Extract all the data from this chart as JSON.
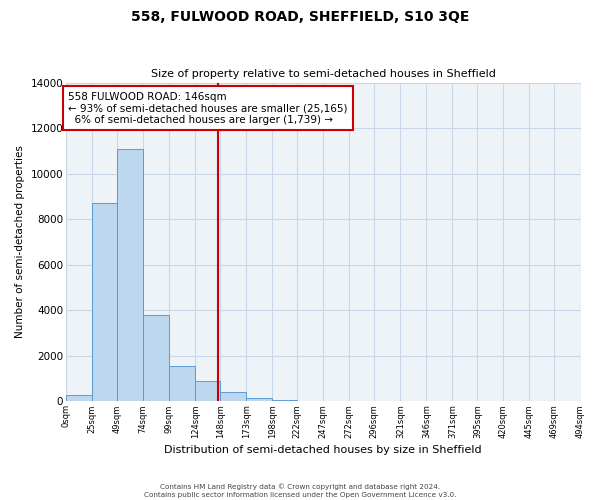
{
  "title": "558, FULWOOD ROAD, SHEFFIELD, S10 3QE",
  "subtitle": "Size of property relative to semi-detached houses in Sheffield",
  "xlabel": "Distribution of semi-detached houses by size in Sheffield",
  "ylabel": "Number of semi-detached properties",
  "footer_line1": "Contains HM Land Registry data © Crown copyright and database right 2024.",
  "footer_line2": "Contains public sector information licensed under the Open Government Licence v3.0.",
  "annotation_line1": "558 FULWOOD ROAD: 146sqm",
  "annotation_line2": "← 93% of semi-detached houses are smaller (25,165)",
  "annotation_line3": "6% of semi-detached houses are larger (1,739) →",
  "property_line_x": 146,
  "bar_edges": [
    0,
    25,
    49,
    74,
    99,
    124,
    148,
    173,
    198,
    222,
    247,
    272,
    296,
    321,
    346,
    371,
    395,
    420,
    445,
    469,
    494
  ],
  "bar_heights": [
    300,
    8700,
    11100,
    3800,
    1550,
    900,
    400,
    150,
    50,
    0,
    0,
    0,
    0,
    0,
    0,
    0,
    0,
    0,
    0,
    0
  ],
  "tick_labels": [
    "0sqm",
    "25sqm",
    "49sqm",
    "74sqm",
    "99sqm",
    "124sqm",
    "148sqm",
    "173sqm",
    "198sqm",
    "222sqm",
    "247sqm",
    "272sqm",
    "296sqm",
    "321sqm",
    "346sqm",
    "371sqm",
    "395sqm",
    "420sqm",
    "445sqm",
    "469sqm",
    "494sqm"
  ],
  "bar_color": "#bdd7ee",
  "bar_edge_color": "#5b9bd5",
  "vline_color": "#cc0000",
  "annotation_box_color": "#cc0000",
  "grid_color": "#c8d8e8",
  "background_color": "#eef3f8",
  "ylim": [
    0,
    14000
  ],
  "yticks": [
    0,
    2000,
    4000,
    6000,
    8000,
    10000,
    12000,
    14000
  ],
  "fig_width": 6.0,
  "fig_height": 5.0,
  "dpi": 100
}
